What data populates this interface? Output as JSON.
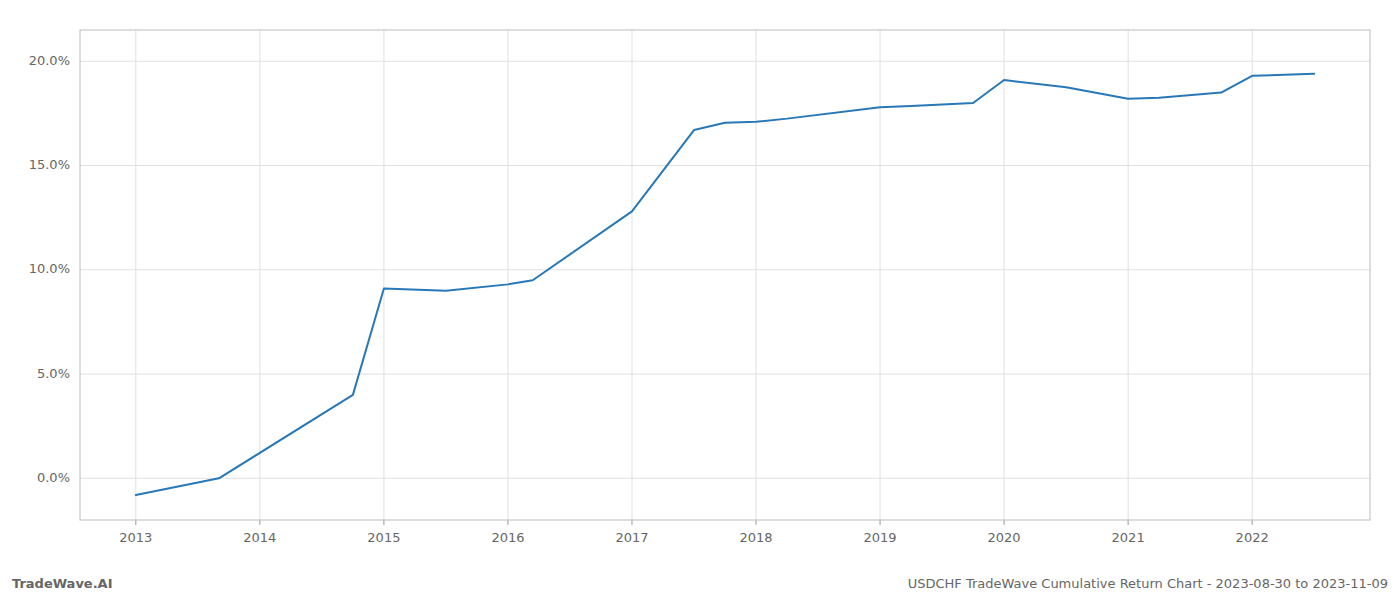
{
  "chart_data": {
    "type": "line",
    "x": [
      2013.0,
      2013.67,
      2014.75,
      2015.0,
      2015.5,
      2016.0,
      2016.2,
      2017.0,
      2017.5,
      2017.75,
      2018.0,
      2018.25,
      2019.0,
      2019.25,
      2019.75,
      2020.0,
      2020.5,
      2021.0,
      2021.25,
      2021.75,
      2022.0,
      2022.5
    ],
    "values": [
      -0.8,
      0.0,
      4.0,
      9.1,
      9.0,
      9.3,
      9.5,
      12.8,
      16.7,
      17.05,
      17.1,
      17.25,
      17.8,
      17.85,
      18.0,
      19.1,
      18.75,
      18.2,
      18.25,
      18.5,
      19.3,
      19.4
    ],
    "color": "#2878b8",
    "xlim": [
      2012.55,
      2022.95
    ],
    "ylim": [
      -2.0,
      21.5
    ],
    "xticks": [
      2013,
      2014,
      2015,
      2016,
      2017,
      2018,
      2019,
      2020,
      2021,
      2022
    ],
    "yticks": [
      {
        "value": 0.0,
        "label": "0.0%"
      },
      {
        "value": 5.0,
        "label": "5.0%"
      },
      {
        "value": 10.0,
        "label": "10.0%"
      },
      {
        "value": 15.0,
        "label": "15.0%"
      },
      {
        "value": 20.0,
        "label": "20.0%"
      }
    ],
    "grid": true,
    "annotations": [
      "TradeWave.AI",
      "USDCHF TradeWave Cumulative Return Chart - 2023-08-30 to 2023-11-09"
    ]
  }
}
